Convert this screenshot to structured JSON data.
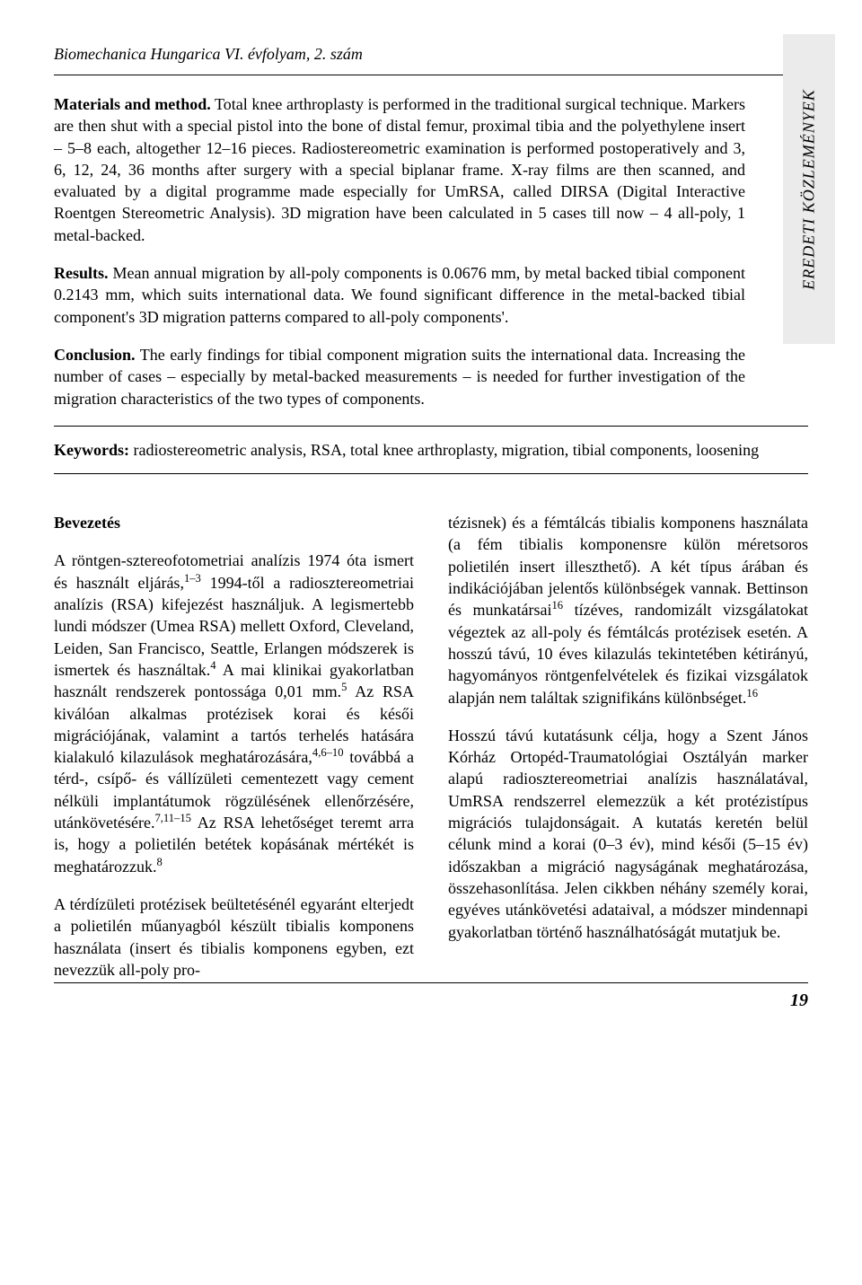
{
  "running_header": "Biomechanica Hungarica VI. évfolyam, 2. szám",
  "sidebar_label": "EREDETI KÖZLEMÉNYEK",
  "abstract": {
    "materials_label": "Materials and method.",
    "materials_text": " Total knee arthroplasty is performed in the traditional surgical technique. Markers are then shut with a special pistol into the bone of distal femur, proximal tibia and the polyethylene insert – 5–8 each, altogether 12–16 pieces. Radiostereometric examination is performed postoperatively and 3, 6, 12, 24, 36 months after surgery with a special biplanar frame. X-ray films are then scanned, and evaluated by a digital programme made especially for UmRSA, called DIRSA (Digital Interactive Roentgen Stereometric Analysis). 3D migration have been calculated in 5 cases till now – 4 all-poly, 1 metal-backed.",
    "results_label": "Results.",
    "results_text": " Mean annual migration by all-poly components is 0.0676 mm, by metal backed tibial component 0.2143 mm, which suits international data. We found significant difference in the metal-backed tibial component's 3D migration patterns compared to all-poly components'.",
    "conclusion_label": "Conclusion.",
    "conclusion_text": " The early findings for tibial component migration suits the international data. Increasing the number of cases – especially by metal-backed measurements – is needed for further investigation of the migration characteristics of the two types of components.",
    "keywords_label": "Keywords:",
    "keywords_text": " radiostereometric analysis, RSA, total knee arthroplasty, migration, tibial components, loosening"
  },
  "body": {
    "intro_heading": "Bevezetés",
    "col1_para1_a": "A röntgen-sztereofotometriai analízis 1974 óta ismert és használt eljárás,",
    "col1_para1_sup1": "1–3",
    "col1_para1_b": " 1994-től a radiosztereometriai analízis (RSA) kifejezést használjuk. A legismertebb lundi módszer (Umea RSA) mellett Oxford, Cleveland, Leiden, San Francisco, Seattle, Erlangen módszerek is ismertek és használtak.",
    "col1_para1_sup2": "4",
    "col1_para1_c": " A mai klinikai gyakorlatban használt rendszerek pontossága 0,01 mm.",
    "col1_para1_sup3": "5",
    "col1_para1_d": " Az RSA kiválóan alkalmas protézisek korai és késői migrációjának, valamint a tartós terhelés hatására kialakuló kilazulások meghatározására,",
    "col1_para1_sup4": "4,6–10",
    "col1_para1_e": " továbbá a térd-, csípő- és vállízületi cementezett vagy cement nélküli implantátumok rögzülésének ellenőrzésére, utánkövetésére.",
    "col1_para1_sup5": "7,11–15",
    "col1_para1_f": " Az RSA lehetőséget teremt arra is, hogy a polietilén betétek kopásának mértékét is meghatározzuk.",
    "col1_para1_sup6": "8",
    "col1_para2": "A térdízületi protézisek beültetésénél egyaránt elterjedt a polietilén műanyagból készült tibialis komponens használata (insert és tibialis komponens egyben, ezt nevezzük all-poly pro-",
    "col2_para1_a": "tézisnek) és a fémtálcás tibialis komponens használata (a fém tibialis komponensre külön méretsoros polietilén insert illeszthető). A két típus árában és indikációjában jelentős különbségek vannak. Bettinson és munkatársai",
    "col2_para1_sup1": "16",
    "col2_para1_b": " tízéves, randomizált vizsgálatokat végeztek az all-poly és fémtálcás protézisek esetén. A hosszú távú, 10 éves kilazulás tekintetében kétirányú, hagyományos röntgenfelvételek és fizikai vizsgálatok alapján nem találtak szignifikáns különbséget.",
    "col2_para1_sup2": "16",
    "col2_para2": "Hosszú távú kutatásunk célja, hogy a Szent János Kórház Ortopéd-Traumatológiai Osztályán marker alapú radiosztereometriai analízis használatával, UmRSA rendszerrel elemezzük a két protézistípus migrációs tulajdonságait. A kutatás keretén belül célunk mind a korai (0–3 év), mind késői (5–15 év) időszakban a migráció nagyságának meghatározása, összehasonlítása. Jelen cikkben néhány személy korai, egyéves utánkövetési adataival, a módszer mindennapi gyakorlatban történő használhatóságát mutatjuk be."
  },
  "page_number": "19"
}
